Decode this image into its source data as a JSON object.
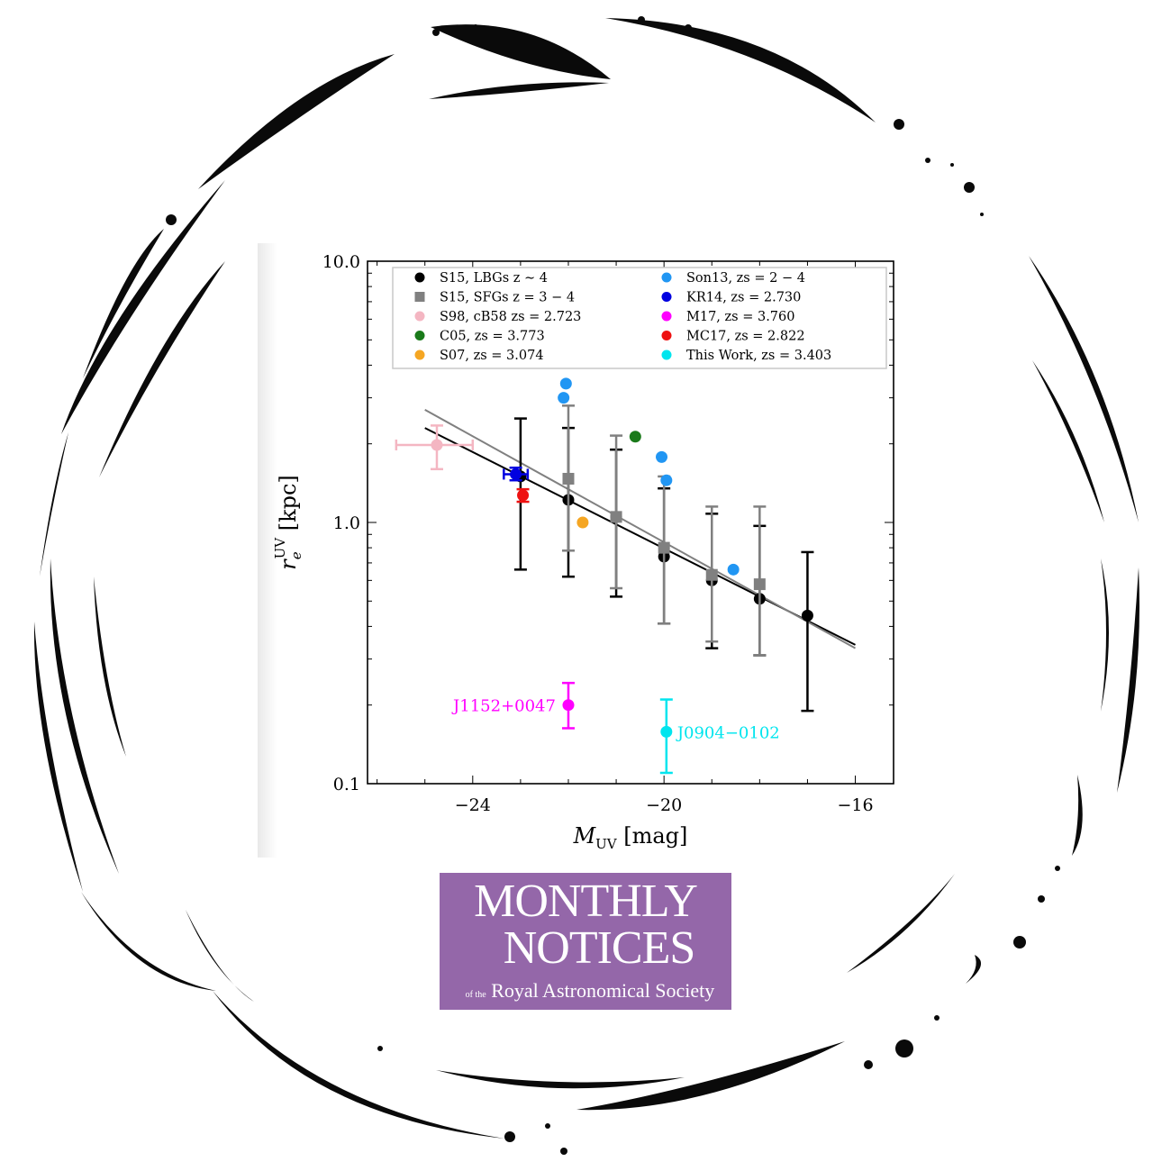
{
  "logo": {
    "line1": "MONTHLY",
    "line2": "NOTICES",
    "line3_prefix": "of the",
    "line3": "Royal Astronomical Society",
    "color": "#9467a9"
  },
  "chart_data": {
    "type": "scatter",
    "xlabel": "M_UV [mag]",
    "ylabel": "r_e^UV [kpc]",
    "xlim": [
      -26.2,
      -15.2
    ],
    "ylim": [
      0.1,
      10.0
    ],
    "y_scale": "log",
    "x_ticks": [
      -24,
      -20,
      -16
    ],
    "x_tick_labels": [
      "−24",
      "−20",
      "−16"
    ],
    "y_ticks": [
      0.1,
      1.0,
      10.0
    ],
    "y_tick_labels": [
      "0.1",
      "1.0",
      "10.0"
    ],
    "legend_position": "top",
    "legend": [
      {
        "label": "S15, LBGs z ∼ 4",
        "color": "#000000",
        "marker": "circle"
      },
      {
        "label": "S15, SFGs z = 3 − 4",
        "color": "#808080",
        "marker": "square"
      },
      {
        "label": "S98, cB58 zs = 2.723",
        "color": "#f4b6c2",
        "marker": "circle"
      },
      {
        "label": "C05, zs = 3.773",
        "color": "#1a7a1a",
        "marker": "circle"
      },
      {
        "label": "S07, zs = 3.074",
        "color": "#f5a623",
        "marker": "circle"
      },
      {
        "label": "Son13, zs = 2 − 4",
        "color": "#2196f3",
        "marker": "circle"
      },
      {
        "label": "KR14, zs = 2.730",
        "color": "#0000e0",
        "marker": "circle"
      },
      {
        "label": "M17, zs = 3.760",
        "color": "#ff00ff",
        "marker": "circle"
      },
      {
        "label": "MC17, zs = 2.822",
        "color": "#ee1111",
        "marker": "circle"
      },
      {
        "label": "This Work, zs = 3.403",
        "color": "#00e5ee",
        "marker": "circle"
      }
    ],
    "fit_lines": [
      {
        "color": "#000000",
        "x": [
          -25.0,
          -16.0
        ],
        "y": [
          2.3,
          0.34
        ]
      },
      {
        "color": "#808080",
        "x": [
          -25.0,
          -16.0
        ],
        "y": [
          2.7,
          0.33
        ]
      }
    ],
    "series": [
      {
        "name": "S15, LBGs z ∼ 4",
        "color": "#000000",
        "marker": "circle",
        "points": [
          {
            "x": -23,
            "y": 1.5,
            "ylo": 0.66,
            "yhi": 2.5
          },
          {
            "x": -22,
            "y": 1.22,
            "ylo": 0.62,
            "yhi": 2.3
          },
          {
            "x": -21,
            "y": 1.05,
            "ylo": 0.52,
            "yhi": 1.9
          },
          {
            "x": -20,
            "y": 0.74,
            "ylo": 0.41,
            "yhi": 1.35
          },
          {
            "x": -19,
            "y": 0.6,
            "ylo": 0.33,
            "yhi": 1.08
          },
          {
            "x": -18,
            "y": 0.51,
            "ylo": 0.31,
            "yhi": 0.97
          },
          {
            "x": -17,
            "y": 0.44,
            "ylo": 0.19,
            "yhi": 0.77
          }
        ]
      },
      {
        "name": "S15, SFGs z = 3 − 4",
        "color": "#808080",
        "marker": "square",
        "points": [
          {
            "x": -22,
            "y": 1.47,
            "ylo": 0.78,
            "yhi": 2.8
          },
          {
            "x": -21,
            "y": 1.05,
            "ylo": 0.56,
            "yhi": 2.15
          },
          {
            "x": -20,
            "y": 0.8,
            "ylo": 0.41,
            "yhi": 1.5
          },
          {
            "x": -19,
            "y": 0.63,
            "ylo": 0.35,
            "yhi": 1.15
          },
          {
            "x": -18,
            "y": 0.58,
            "ylo": 0.31,
            "yhi": 1.15
          }
        ]
      },
      {
        "name": "S98, cB58 zs = 2.723",
        "color": "#f4b6c2",
        "marker": "circle",
        "points": [
          {
            "x": -24.75,
            "y": 1.98,
            "ylo": 1.6,
            "yhi": 2.35,
            "xlo": -25.6,
            "xhi": -24.0
          }
        ]
      },
      {
        "name": "C05, zs = 3.773",
        "color": "#1a7a1a",
        "marker": "circle",
        "points": [
          {
            "x": -20.6,
            "y": 2.13
          }
        ]
      },
      {
        "name": "S07, zs = 3.074",
        "color": "#f5a623",
        "marker": "circle",
        "points": [
          {
            "x": -21.7,
            "y": 1.0
          }
        ]
      },
      {
        "name": "Son13, zs = 2 − 4",
        "color": "#2196f3",
        "marker": "circle",
        "points": [
          {
            "x": -22.05,
            "y": 3.4
          },
          {
            "x": -22.1,
            "y": 3.0
          },
          {
            "x": -20.05,
            "y": 1.78
          },
          {
            "x": -19.95,
            "y": 1.45
          },
          {
            "x": -18.55,
            "y": 0.66
          }
        ]
      },
      {
        "name": "KR14, zs = 2.730",
        "color": "#0000e0",
        "marker": "circle",
        "points": [
          {
            "x": -23.1,
            "y": 1.53,
            "ylo": 1.45,
            "yhi": 1.62,
            "xlo": -23.35,
            "xhi": -22.85
          }
        ]
      },
      {
        "name": "M17, zs = 3.760",
        "color": "#ff00ff",
        "marker": "circle",
        "points": [
          {
            "x": -22.0,
            "y": 0.2,
            "ylo": 0.163,
            "yhi": 0.243,
            "label": "J1152+0047"
          }
        ]
      },
      {
        "name": "MC17, zs = 2.822",
        "color": "#ee1111",
        "marker": "circle",
        "points": [
          {
            "x": -22.95,
            "y": 1.27,
            "ylo": 1.2,
            "yhi": 1.34
          }
        ]
      },
      {
        "name": "This Work, zs = 3.403",
        "color": "#00e5ee",
        "marker": "circle",
        "points": [
          {
            "x": -19.95,
            "y": 0.158,
            "ylo": 0.11,
            "yhi": 0.21,
            "label": "J0904−0102"
          }
        ]
      }
    ]
  }
}
